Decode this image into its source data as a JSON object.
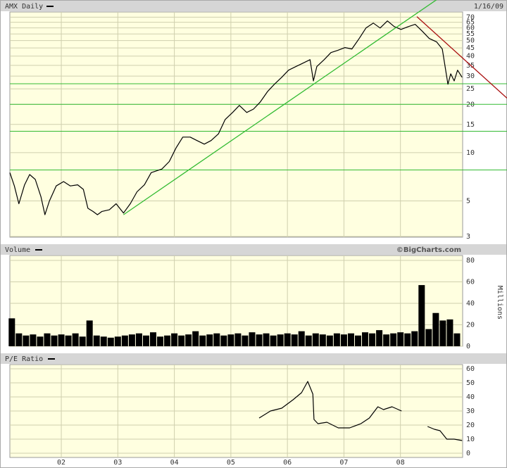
{
  "chart_data": [
    {
      "type": "line",
      "title": "AMX Daily",
      "date": "1/16/09",
      "log_scale": true,
      "grid": true,
      "ylim": [
        2.97,
        75.4
      ],
      "yticks": [
        3,
        5,
        10,
        15,
        20,
        25,
        30,
        35,
        40,
        45,
        50,
        55,
        60,
        65,
        70
      ],
      "series": [
        {
          "name": "AMX Daily",
          "color": "#000000",
          "x": [
            2001.09,
            2001.17,
            2001.25,
            2001.35,
            2001.44,
            2001.54,
            2001.64,
            2001.71,
            2001.79,
            2001.91,
            2002.04,
            2002.16,
            2002.29,
            2002.39,
            2002.47,
            2002.56,
            2002.64,
            2002.72,
            2002.85,
            2002.97,
            2003.1,
            2003.22,
            2003.34,
            2003.47,
            2003.59,
            2003.78,
            2003.91,
            2004.03,
            2004.15,
            2004.28,
            2004.4,
            2004.53,
            2004.65,
            2004.78,
            2004.9,
            2005.03,
            2005.15,
            2005.28,
            2005.4,
            2005.52,
            2005.65,
            2005.77,
            2005.9,
            2006.02,
            2006.15,
            2006.27,
            2006.4,
            2006.46,
            2006.52,
            2006.65,
            2006.77,
            2006.89,
            2007.02,
            2007.14,
            2007.27,
            2007.39,
            2007.52,
            2007.64,
            2007.77,
            2007.89,
            2008.01,
            2008.14,
            2008.26,
            2008.39,
            2008.51,
            2008.64,
            2008.74,
            2008.79,
            2008.84,
            2008.89,
            2008.95,
            2009.01,
            2009.09
          ],
          "values": [
            7.5,
            6.2,
            4.8,
            6.3,
            7.3,
            6.8,
            5.3,
            4.1,
            5.0,
            6.2,
            6.6,
            6.2,
            6.3,
            5.9,
            4.5,
            4.3,
            4.1,
            4.3,
            4.4,
            4.8,
            4.2,
            4.8,
            5.7,
            6.3,
            7.5,
            7.9,
            8.8,
            10.7,
            12.5,
            12.5,
            11.9,
            11.3,
            11.9,
            13.1,
            16.1,
            17.8,
            19.7,
            17.8,
            18.7,
            20.7,
            24.1,
            26.7,
            29.5,
            32.7,
            34.4,
            36.1,
            38.0,
            28.0,
            34.4,
            38.0,
            42.1,
            43.4,
            45.2,
            44.3,
            51.5,
            59.9,
            64.3,
            59.9,
            66.3,
            61.1,
            58.7,
            61.1,
            63.1,
            57.0,
            51.5,
            49.0,
            44.3,
            34.4,
            26.7,
            31.0,
            28.0,
            32.7,
            29.5
          ]
        }
      ],
      "reference_lines": {
        "color": "#33bb33",
        "values": [
          26.9,
          20,
          13.6,
          7.8
        ]
      },
      "trendlines": [
        {
          "color": "#33bb33",
          "x": [
            2003.1,
            2007.64
          ],
          "values": [
            4.1,
            51.5
          ]
        },
        {
          "color": "#aa1111",
          "x": [
            2008.29,
            2009.1
          ],
          "values": [
            70.5,
            38.9
          ]
        }
      ]
    },
    {
      "type": "bar",
      "source": "©BigCharts.com",
      "y_label": "Millions",
      "grid": true,
      "ylim": [
        0,
        84.6
      ],
      "yticks": [
        0,
        20,
        40,
        60,
        80
      ],
      "series": [
        {
          "name": "Volume",
          "color": "#000000",
          "x": [
            2001.125,
            2001.25,
            2001.375,
            2001.5,
            2001.625,
            2001.75,
            2001.875,
            2002,
            2002.125,
            2002.25,
            2002.375,
            2002.5,
            2002.625,
            2002.75,
            2002.875,
            2003,
            2003.125,
            2003.25,
            2003.375,
            2003.5,
            2003.625,
            2003.75,
            2003.875,
            2004,
            2004.125,
            2004.25,
            2004.375,
            2004.5,
            2004.625,
            2004.75,
            2004.875,
            2005,
            2005.125,
            2005.25,
            2005.375,
            2005.5,
            2005.625,
            2005.75,
            2005.875,
            2006,
            2006.125,
            2006.25,
            2006.375,
            2006.5,
            2006.625,
            2006.75,
            2006.875,
            2007,
            2007.125,
            2007.25,
            2007.375,
            2007.5,
            2007.625,
            2007.75,
            2007.875,
            2008,
            2008.125,
            2008.25,
            2008.375,
            2008.5,
            2008.625,
            2008.75,
            2008.875,
            2009
          ],
          "values": [
            26,
            12,
            10,
            11,
            9,
            12,
            10,
            11,
            10,
            12,
            9,
            24,
            10,
            9,
            8,
            9,
            10,
            11,
            12,
            10,
            13,
            9,
            10,
            12,
            10,
            11,
            14,
            10,
            11,
            12,
            10,
            11,
            12,
            10,
            13,
            11,
            12,
            10,
            11,
            12,
            11,
            14,
            10,
            12,
            11,
            10,
            12,
            11,
            12,
            10,
            13,
            12,
            15,
            11,
            12,
            13,
            12,
            14,
            57,
            16,
            31,
            24,
            25,
            12
          ]
        }
      ]
    },
    {
      "type": "line",
      "grid": true,
      "xlim": [
        2001.09,
        2009.1
      ],
      "xticks": [
        {
          "value": 2002,
          "label": "02"
        },
        {
          "value": 2003,
          "label": "03"
        },
        {
          "value": 2004,
          "label": "04"
        },
        {
          "value": 2005,
          "label": "05"
        },
        {
          "value": 2006,
          "label": "06"
        },
        {
          "value": 2007,
          "label": "07"
        },
        {
          "value": 2008,
          "label": "08"
        }
      ],
      "ylim": [
        -3,
        63
      ],
      "yticks": [
        0,
        10,
        20,
        30,
        40,
        50,
        60
      ],
      "series": [
        {
          "name": "P/E Ratio",
          "color": "#000000",
          "x": [
            2005.5,
            2005.7,
            2005.9,
            2006.1,
            2006.25,
            2006.36,
            2006.45,
            2006.47,
            2006.54,
            2006.7,
            2006.9,
            2007.1,
            2007.3,
            2007.45,
            2007.6,
            2007.7,
            2007.85,
            2008.02,
            2008.25,
            2008.48,
            2008.6,
            2008.7,
            2008.76,
            2008.82,
            2008.95,
            2009.09
          ],
          "values": [
            25,
            30,
            32,
            38,
            43,
            51,
            42,
            24,
            21,
            22,
            18,
            18,
            21,
            25,
            33,
            31,
            33,
            30,
            null,
            19,
            17,
            16,
            13,
            10,
            10,
            9
          ]
        }
      ]
    }
  ]
}
